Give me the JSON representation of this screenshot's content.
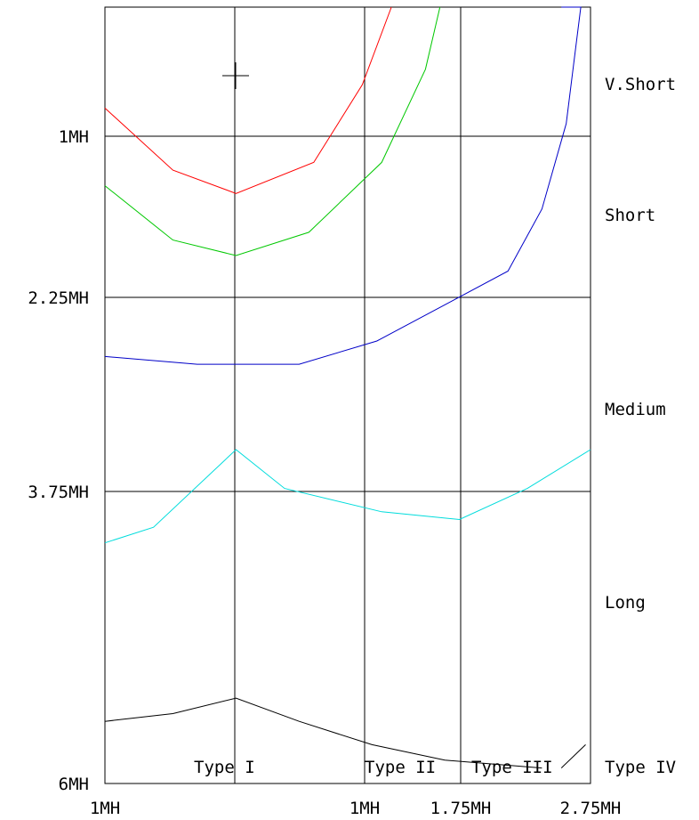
{
  "chart_data": {
    "type": "line",
    "title": "",
    "y_ticks": [
      "1MH",
      "2.25MH",
      "3.75MH",
      "6MH"
    ],
    "x_ticks": [
      "1MH",
      "1MH",
      "1.75MH",
      "2.75MH"
    ],
    "zone_labels": [
      "V.Short",
      "Short",
      "Medium",
      "Long"
    ],
    "type_labels": [
      "Type I",
      "Type II",
      "Type III",
      "Type IV"
    ],
    "series": [
      {
        "color": "#ff0000",
        "values": [
          [
            0,
            0.13
          ],
          [
            0.14,
            0.21
          ],
          [
            0.27,
            0.24
          ],
          [
            0.43,
            0.2
          ],
          [
            0.53,
            0.1
          ],
          [
            0.59,
            0.0
          ]
        ]
      },
      {
        "color": "#00c800",
        "values": [
          [
            0,
            0.23
          ],
          [
            0.14,
            0.3
          ],
          [
            0.27,
            0.32
          ],
          [
            0.42,
            0.29
          ],
          [
            0.57,
            0.2
          ],
          [
            0.66,
            0.08
          ],
          [
            0.69,
            0.0
          ]
        ]
      },
      {
        "color": "#0000c8",
        "values": [
          [
            0,
            0.45
          ],
          [
            0.19,
            0.46
          ],
          [
            0.27,
            0.46
          ],
          [
            0.4,
            0.46
          ],
          [
            0.56,
            0.43
          ],
          [
            0.71,
            0.38
          ],
          [
            0.83,
            0.34
          ],
          [
            0.9,
            0.26
          ],
          [
            0.95,
            0.15
          ],
          [
            0.97,
            0.05
          ],
          [
            0.98,
            0.0
          ],
          [
            0.94,
            0.0
          ]
        ]
      },
      {
        "color": "#00dcdc",
        "values": [
          [
            0,
            0.69
          ],
          [
            0.1,
            0.67
          ],
          [
            0.27,
            0.57
          ],
          [
            0.37,
            0.62
          ],
          [
            0.57,
            0.65
          ],
          [
            0.73,
            0.66
          ],
          [
            0.87,
            0.62
          ],
          [
            1.0,
            0.57
          ]
        ]
      },
      {
        "color": "#000000",
        "values": [
          [
            0,
            0.92
          ],
          [
            0.14,
            0.91
          ],
          [
            0.27,
            0.89
          ],
          [
            0.4,
            0.92
          ],
          [
            0.55,
            0.95
          ],
          [
            0.7,
            0.97
          ],
          [
            0.9,
            0.98
          ]
        ]
      },
      {
        "color": "#000000",
        "values": [
          [
            0.94,
            0.98
          ],
          [
            0.99,
            0.95
          ]
        ]
      }
    ]
  }
}
